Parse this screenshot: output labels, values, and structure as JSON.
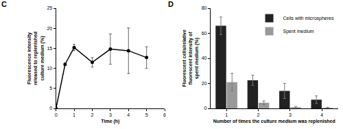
{
  "chart_data": [
    {
      "type": "line",
      "title": "C",
      "x": [
        0,
        0.5,
        1,
        2,
        3,
        4,
        5
      ],
      "values": [
        0,
        11,
        15.2,
        11.5,
        14.8,
        14.4,
        12.7
      ],
      "errors": [
        0,
        0.3,
        0.8,
        1.2,
        3.8,
        5.7,
        2.7
      ],
      "color": "#000000",
      "marker": "circle",
      "x_label": "Time (h)",
      "y_label": "Fluorescence intensity released to replenished culture medium (%)",
      "xlim": [
        0,
        6
      ],
      "xticks": [
        0,
        1,
        2,
        3,
        4,
        5,
        6
      ],
      "ylim": [
        0,
        25
      ],
      "yticks": [
        0,
        5,
        10,
        15,
        20,
        25
      ],
      "grid": false
    },
    {
      "type": "bar",
      "title": "D",
      "categories": [
        "1",
        "2",
        "3",
        "4"
      ],
      "series": [
        {
          "name": "Cells with microspheres",
          "color": "#222222",
          "values": [
            66,
            22.5,
            14,
            7
          ],
          "errors": [
            7,
            4,
            6,
            3
          ]
        },
        {
          "name": "Spent medium",
          "color": "#999999",
          "values": [
            21,
            4.5,
            1,
            0.5
          ],
          "errors": [
            7,
            1.5,
            0.5,
            0.3
          ]
        }
      ],
      "x_label": "Number of times the culture medium was replenished",
      "y_label": "Fluorescent cells/relative fluorescent intensity of spent medium (%)",
      "ylim": [
        0,
        80
      ],
      "yticks": [
        0,
        20,
        40,
        60,
        80
      ],
      "legend": "top right",
      "grid": false
    }
  ]
}
